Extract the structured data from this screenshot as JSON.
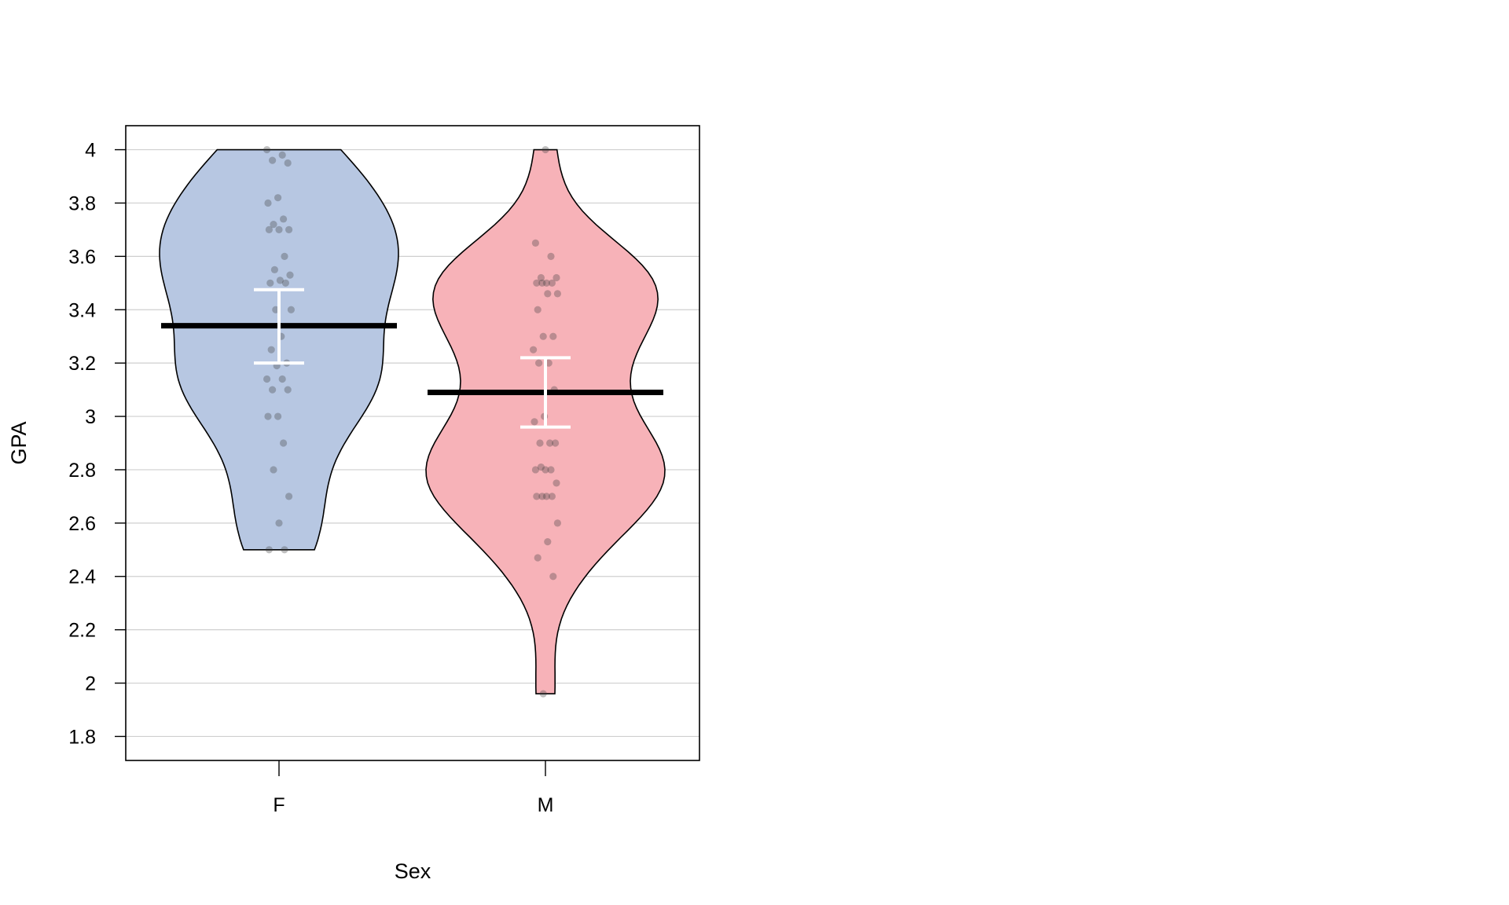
{
  "chart_data": {
    "type": "violin",
    "title": "",
    "xlabel": "Sex",
    "ylabel": "GPA",
    "ylim": [
      1.71,
      4.09
    ],
    "yticks": [
      "1.8",
      "2",
      "2.2",
      "2.4",
      "2.6",
      "2.8",
      "3",
      "3.2",
      "3.4",
      "3.6",
      "3.8",
      "4"
    ],
    "grid": true,
    "categories": [
      "F",
      "M"
    ],
    "series": [
      {
        "category": "F",
        "color": "#b7c7e2",
        "mean": 3.34,
        "ci": [
          3.2,
          3.475
        ],
        "min": 2.5,
        "max": 4.0,
        "points": [
          4.0,
          3.98,
          3.96,
          3.95,
          3.82,
          3.8,
          3.74,
          3.72,
          3.7,
          3.7,
          3.7,
          3.6,
          3.55,
          3.53,
          3.51,
          3.5,
          3.5,
          3.4,
          3.4,
          3.3,
          3.25,
          3.2,
          3.19,
          3.14,
          3.14,
          3.1,
          3.1,
          3.0,
          3.0,
          2.9,
          2.8,
          2.7,
          2.6,
          2.5,
          2.5
        ]
      },
      {
        "category": "M",
        "color": "#f7b2b8",
        "mean": 3.09,
        "ci": [
          2.96,
          3.22
        ],
        "min": 1.96,
        "max": 4.0,
        "points": [
          4.0,
          3.65,
          3.6,
          3.52,
          3.52,
          3.5,
          3.5,
          3.5,
          3.5,
          3.46,
          3.46,
          3.4,
          3.3,
          3.3,
          3.25,
          3.2,
          3.2,
          3.1,
          3.0,
          2.98,
          2.9,
          2.9,
          2.9,
          2.8,
          2.8,
          2.8,
          2.81,
          2.75,
          2.7,
          2.7,
          2.7,
          2.7,
          2.6,
          2.53,
          2.47,
          2.4,
          1.96
        ]
      }
    ]
  }
}
